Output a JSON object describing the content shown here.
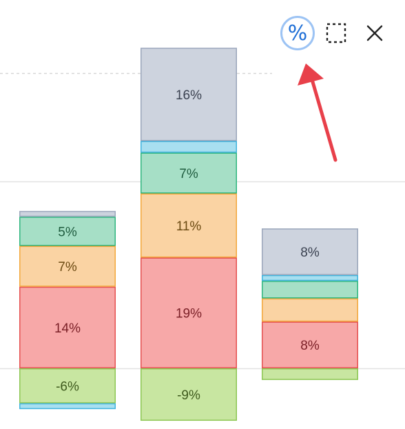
{
  "toolbar": {
    "percent_button": {
      "glyph": "%",
      "active": true,
      "color": "#1f6fd6"
    },
    "select_button": {
      "icon": "dashed-selection-icon"
    },
    "close_button": {
      "icon": "close-icon"
    }
  },
  "annotation": {
    "arrow_color": "#e8404a",
    "points_to": "percent_button"
  },
  "chart_data": {
    "type": "bar",
    "stacked": true,
    "bars": [
      {
        "segments": [
          {
            "label": "",
            "value": 1,
            "color": "#cdd3de",
            "border": "#9aa6bb",
            "text": "#3a4150"
          },
          {
            "label": "5%",
            "value": 5,
            "color": "#a6dfc6",
            "border": "#2fb67f",
            "text": "#1f5c3f"
          },
          {
            "label": "7%",
            "value": 7,
            "color": "#fad3a3",
            "border": "#f3a73b",
            "text": "#6b4a12"
          },
          {
            "label": "14%",
            "value": 14,
            "color": "#f7a8a8",
            "border": "#e55050",
            "text": "#7a1f26"
          },
          {
            "label": "-6%",
            "value": -6,
            "color": "#c8e6a1",
            "border": "#8cc653",
            "text": "#3e5a1d"
          },
          {
            "label": "",
            "value": -1,
            "color": "#a8dff0",
            "border": "#3fb3dd",
            "text": "#1d4e5f"
          }
        ]
      },
      {
        "segments": [
          {
            "label": "16%",
            "value": 16,
            "color": "#cdd3de",
            "border": "#9aa6bb",
            "text": "#3a4150"
          },
          {
            "label": "",
            "value": 2,
            "color": "#a8dff0",
            "border": "#3fb3dd",
            "text": "#1d4e5f"
          },
          {
            "label": "7%",
            "value": 7,
            "color": "#a6dfc6",
            "border": "#2fb67f",
            "text": "#1f5c3f"
          },
          {
            "label": "11%",
            "value": 11,
            "color": "#fad3a3",
            "border": "#f3a73b",
            "text": "#6b4a12"
          },
          {
            "label": "19%",
            "value": 19,
            "color": "#f7a8a8",
            "border": "#e55050",
            "text": "#7a1f26"
          },
          {
            "label": "-9%",
            "value": -9,
            "color": "#c8e6a1",
            "border": "#8cc653",
            "text": "#3e5a1d"
          }
        ]
      },
      {
        "segments": [
          {
            "label": "8%",
            "value": 8,
            "color": "#cdd3de",
            "border": "#9aa6bb",
            "text": "#3a4150"
          },
          {
            "label": "",
            "value": 1,
            "color": "#a8dff0",
            "border": "#3fb3dd",
            "text": "#1d4e5f"
          },
          {
            "label": "",
            "value": 3,
            "color": "#a6dfc6",
            "border": "#2fb67f",
            "text": "#1f5c3f"
          },
          {
            "label": "",
            "value": 4,
            "color": "#fad3a3",
            "border": "#f3a73b",
            "text": "#6b4a12"
          },
          {
            "label": "8%",
            "value": 8,
            "color": "#f7a8a8",
            "border": "#e55050",
            "text": "#7a1f26"
          },
          {
            "label": "",
            "value": -2,
            "color": "#c8e6a1",
            "border": "#8cc653",
            "text": "#3e5a1d"
          }
        ]
      }
    ],
    "gridlines": true
  }
}
